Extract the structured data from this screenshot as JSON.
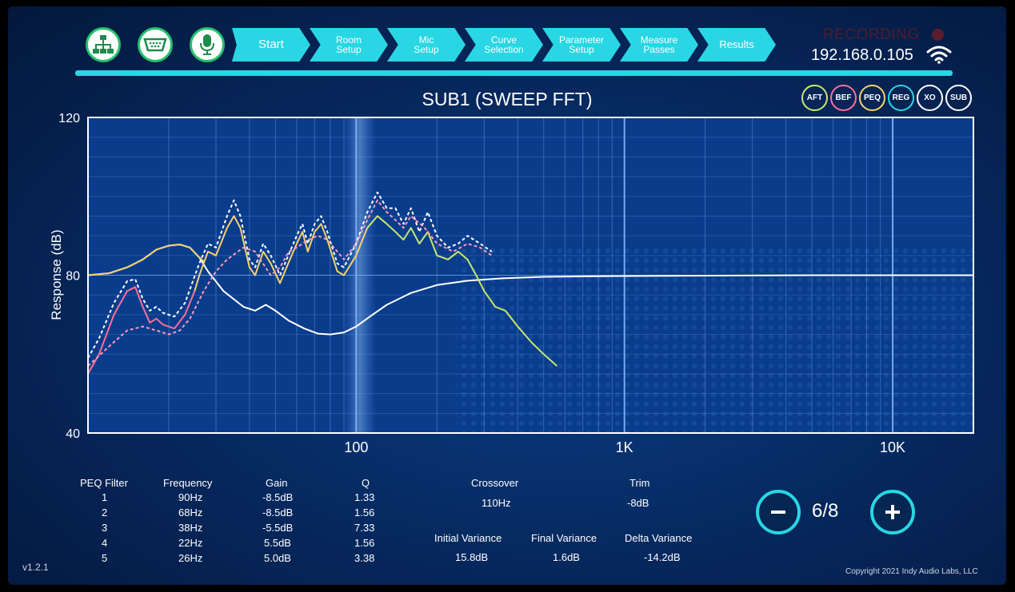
{
  "toolbar": {
    "icons": [
      "network-icon",
      "serial-port-icon",
      "microphone-icon"
    ]
  },
  "steps": [
    {
      "line1": "Start",
      "line2": ""
    },
    {
      "line1": "Room",
      "line2": "Setup"
    },
    {
      "line1": "Mic",
      "line2": "Setup"
    },
    {
      "line1": "Curve",
      "line2": "Selection"
    },
    {
      "line1": "Parameter",
      "line2": "Setup"
    },
    {
      "line1": "Measure",
      "line2": "Passes"
    },
    {
      "line1": "Results",
      "line2": ""
    }
  ],
  "status": {
    "recording": "RECORDING",
    "ip": "192.168.0.105"
  },
  "badges": [
    {
      "label": "AFT",
      "color": "#c8e86a"
    },
    {
      "label": "BEF",
      "color": "#ff6f9a"
    },
    {
      "label": "PEQ",
      "color": "#f5d36a"
    },
    {
      "label": "REG",
      "color": "#29d6e4"
    },
    {
      "label": "XO",
      "color": "#ffffff"
    },
    {
      "label": "SUB",
      "color": "#ffffff"
    }
  ],
  "chart_data": {
    "type": "line",
    "title": "SUB1 (SWEEP FFT)",
    "ylabel": "Response (dB)",
    "xlabel": "",
    "xscale": "log",
    "xlim": [
      10,
      20000
    ],
    "ylim": [
      40,
      120
    ],
    "ytick_labels": [
      "120",
      "80",
      "40"
    ],
    "ytick_values": [
      120,
      80,
      40
    ],
    "xtick_labels": [
      "100",
      "1K",
      "10K"
    ],
    "xtick_values": [
      100,
      1000,
      10000
    ],
    "grid": true,
    "series": [
      {
        "color": "#ffffff",
        "style": "solid",
        "points": [
          [
            10,
            80
          ],
          [
            12,
            80.5
          ],
          [
            14,
            82
          ],
          [
            16,
            84
          ],
          [
            18,
            86.5
          ],
          [
            20,
            87.5
          ],
          [
            22,
            87.8
          ],
          [
            24,
            87
          ],
          [
            26,
            84.5
          ],
          [
            28,
            81
          ],
          [
            32,
            76
          ],
          [
            38,
            72
          ],
          [
            42,
            71
          ],
          [
            46,
            72.5
          ],
          [
            50,
            71
          ],
          [
            56,
            68.5
          ],
          [
            64,
            66.5
          ],
          [
            72,
            65.2
          ],
          [
            80,
            65
          ],
          [
            90,
            65.5
          ],
          [
            100,
            67
          ],
          [
            115,
            70
          ],
          [
            130,
            72.5
          ],
          [
            160,
            75.5
          ],
          [
            200,
            77.5
          ],
          [
            260,
            78.6
          ],
          [
            350,
            79.2
          ],
          [
            500,
            79.6
          ],
          [
            1000,
            79.8
          ],
          [
            5000,
            80
          ],
          [
            20000,
            80
          ]
        ]
      },
      {
        "color": "#f5d36a",
        "style": "solid",
        "points": [
          [
            10,
            80
          ],
          [
            12,
            80.5
          ],
          [
            14,
            82
          ],
          [
            16,
            84
          ],
          [
            18,
            86.5
          ],
          [
            20,
            87.5
          ],
          [
            22,
            87.8
          ],
          [
            24,
            87
          ],
          [
            26,
            84.5
          ],
          [
            27,
            83.5
          ]
        ]
      },
      {
        "color": "#ffffff",
        "style": "dashed",
        "points": [
          [
            10,
            59
          ],
          [
            11,
            64
          ],
          [
            12.5,
            73
          ],
          [
            14,
            78.5
          ],
          [
            15,
            79
          ],
          [
            16,
            74
          ],
          [
            17,
            71
          ],
          [
            18,
            72
          ],
          [
            19,
            70.5
          ],
          [
            21,
            69.5
          ],
          [
            23,
            73
          ],
          [
            26,
            83
          ],
          [
            28,
            88
          ],
          [
            30,
            87
          ],
          [
            33,
            95
          ],
          [
            35,
            99
          ],
          [
            37,
            95
          ],
          [
            40,
            84
          ],
          [
            42,
            82
          ],
          [
            45,
            88
          ],
          [
            48,
            85
          ],
          [
            52,
            80
          ],
          [
            55,
            84
          ],
          [
            60,
            90
          ],
          [
            63,
            93
          ],
          [
            66,
            88
          ],
          [
            70,
            93
          ],
          [
            74,
            95
          ],
          [
            78,
            91
          ],
          [
            85,
            83
          ],
          [
            90,
            82
          ],
          [
            100,
            88
          ],
          [
            110,
            96
          ],
          [
            120,
            101
          ],
          [
            130,
            97
          ],
          [
            140,
            97
          ],
          [
            150,
            93
          ],
          [
            160,
            97
          ],
          [
            172,
            91
          ],
          [
            185,
            96
          ],
          [
            200,
            90
          ],
          [
            220,
            87
          ],
          [
            240,
            88
          ],
          [
            260,
            90
          ],
          [
            290,
            88
          ],
          [
            320,
            86
          ]
        ]
      },
      {
        "color": "#ff6f9a",
        "style": "solid",
        "points": [
          [
            10,
            55
          ],
          [
            11,
            60
          ],
          [
            12.5,
            70
          ],
          [
            14,
            76
          ],
          [
            15,
            77
          ],
          [
            16,
            72
          ],
          [
            17,
            68
          ],
          [
            18,
            69
          ],
          [
            19,
            67.5
          ],
          [
            21,
            66.5
          ],
          [
            23,
            70
          ],
          [
            25,
            76
          ]
        ]
      },
      {
        "color": "#f5d36a",
        "style": "solid",
        "points": [
          [
            25,
            76
          ],
          [
            26,
            80
          ],
          [
            28,
            86
          ],
          [
            30,
            85
          ],
          [
            33,
            92
          ],
          [
            35,
            95
          ],
          [
            37,
            92
          ],
          [
            40,
            82
          ],
          [
            42,
            80
          ],
          [
            45,
            86
          ],
          [
            48,
            83
          ],
          [
            52,
            78
          ],
          [
            55,
            82
          ],
          [
            60,
            88
          ],
          [
            63,
            91
          ],
          [
            66,
            86
          ],
          [
            70,
            91
          ],
          [
            74,
            93
          ],
          [
            78,
            89
          ],
          [
            85,
            81
          ],
          [
            90,
            80
          ],
          [
            100,
            85
          ],
          [
            110,
            92
          ]
        ]
      },
      {
        "color": "#c8e86a",
        "style": "solid",
        "points": [
          [
            110,
            92
          ],
          [
            120,
            95
          ],
          [
            130,
            93
          ],
          [
            140,
            91
          ],
          [
            150,
            89
          ],
          [
            160,
            92
          ],
          [
            172,
            88
          ],
          [
            185,
            91
          ],
          [
            200,
            85
          ],
          [
            220,
            84
          ],
          [
            240,
            86
          ],
          [
            260,
            84
          ],
          [
            280,
            80
          ],
          [
            300,
            76
          ],
          [
            330,
            72
          ],
          [
            360,
            71
          ],
          [
            400,
            67
          ],
          [
            450,
            63
          ],
          [
            500,
            60
          ],
          [
            560,
            57
          ]
        ]
      },
      {
        "color": "#ff9ab8",
        "style": "dashed",
        "points": [
          [
            10,
            57
          ],
          [
            12,
            62
          ],
          [
            14,
            66
          ],
          [
            16,
            67
          ],
          [
            18,
            66
          ],
          [
            20,
            65
          ],
          [
            22,
            66
          ],
          [
            24,
            69
          ],
          [
            27,
            76
          ],
          [
            30,
            81
          ],
          [
            33,
            84
          ],
          [
            38,
            87
          ],
          [
            42,
            86
          ],
          [
            48,
            80
          ],
          [
            52,
            82
          ],
          [
            56,
            86
          ],
          [
            60,
            87
          ],
          [
            66,
            89
          ],
          [
            72,
            90
          ],
          [
            78,
            89
          ],
          [
            85,
            86
          ],
          [
            90,
            84
          ],
          [
            100,
            88
          ],
          [
            110,
            94
          ],
          [
            120,
            99
          ],
          [
            130,
            96
          ],
          [
            140,
            94
          ],
          [
            150,
            92
          ],
          [
            160,
            95
          ],
          [
            180,
            92
          ],
          [
            200,
            88
          ],
          [
            230,
            86
          ],
          [
            260,
            88
          ],
          [
            290,
            87
          ],
          [
            320,
            85
          ]
        ]
      }
    ]
  },
  "peq_table": {
    "headers": [
      "PEQ Filter",
      "Frequency",
      "Gain",
      "Q"
    ],
    "rows": [
      [
        "1",
        "90Hz",
        "-8.5dB",
        "1.33"
      ],
      [
        "2",
        "68Hz",
        "-8.5dB",
        "1.56"
      ],
      [
        "3",
        "38Hz",
        "-5.5dB",
        "7.33"
      ],
      [
        "4",
        "22Hz",
        "5.5dB",
        "1.56"
      ],
      [
        "5",
        "26Hz",
        "5.0dB",
        "3.38"
      ]
    ]
  },
  "summary": {
    "crossover_label": "Crossover",
    "crossover_value": "110Hz",
    "trim_label": "Trim",
    "trim_value": "-8dB",
    "initial_variance_label": "Initial Variance",
    "initial_variance_value": "15.8dB",
    "final_variance_label": "Final Variance",
    "final_variance_value": "1.6dB",
    "delta_variance_label": "Delta Variance",
    "delta_variance_value": "-14.2dB"
  },
  "pager": {
    "value": "6/8"
  },
  "footer": {
    "version": "v1.2.1",
    "copyright": "Copyright 2021 Indy Audio Labs, LLC"
  }
}
